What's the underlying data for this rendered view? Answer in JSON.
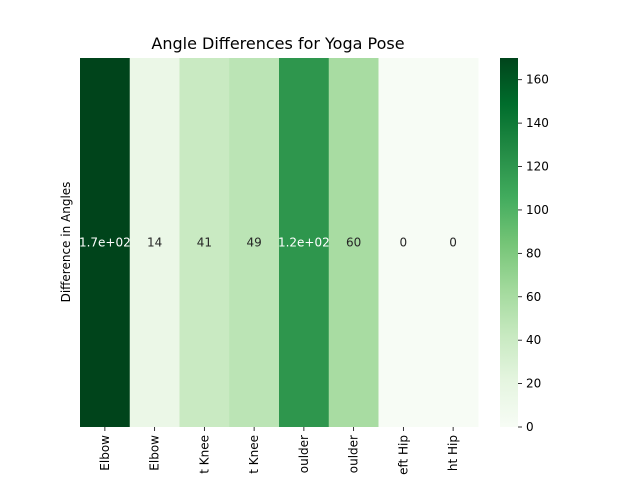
{
  "chart_data": {
    "type": "heatmap",
    "title": "Angle Differences for Yoga Pose",
    "ylabel": "Difference in Angles",
    "xlabel": "",
    "categories": [
      "Elbow",
      "Elbow",
      "t Knee",
      "t Knee",
      "oulder",
      "oulder",
      "eft Hip",
      "ht Hip"
    ],
    "values": [
      170,
      14,
      41,
      49,
      120,
      60,
      0,
      0
    ],
    "cell_labels": [
      "1.7e+02",
      "14",
      "41",
      "49",
      "1.2e+02",
      "60",
      "0",
      "0"
    ],
    "colorbar": {
      "range": [
        0,
        170
      ],
      "ticks": [
        0,
        20,
        40,
        60,
        80,
        100,
        120,
        140,
        160
      ],
      "colormap": "Greens"
    },
    "grid": false
  }
}
